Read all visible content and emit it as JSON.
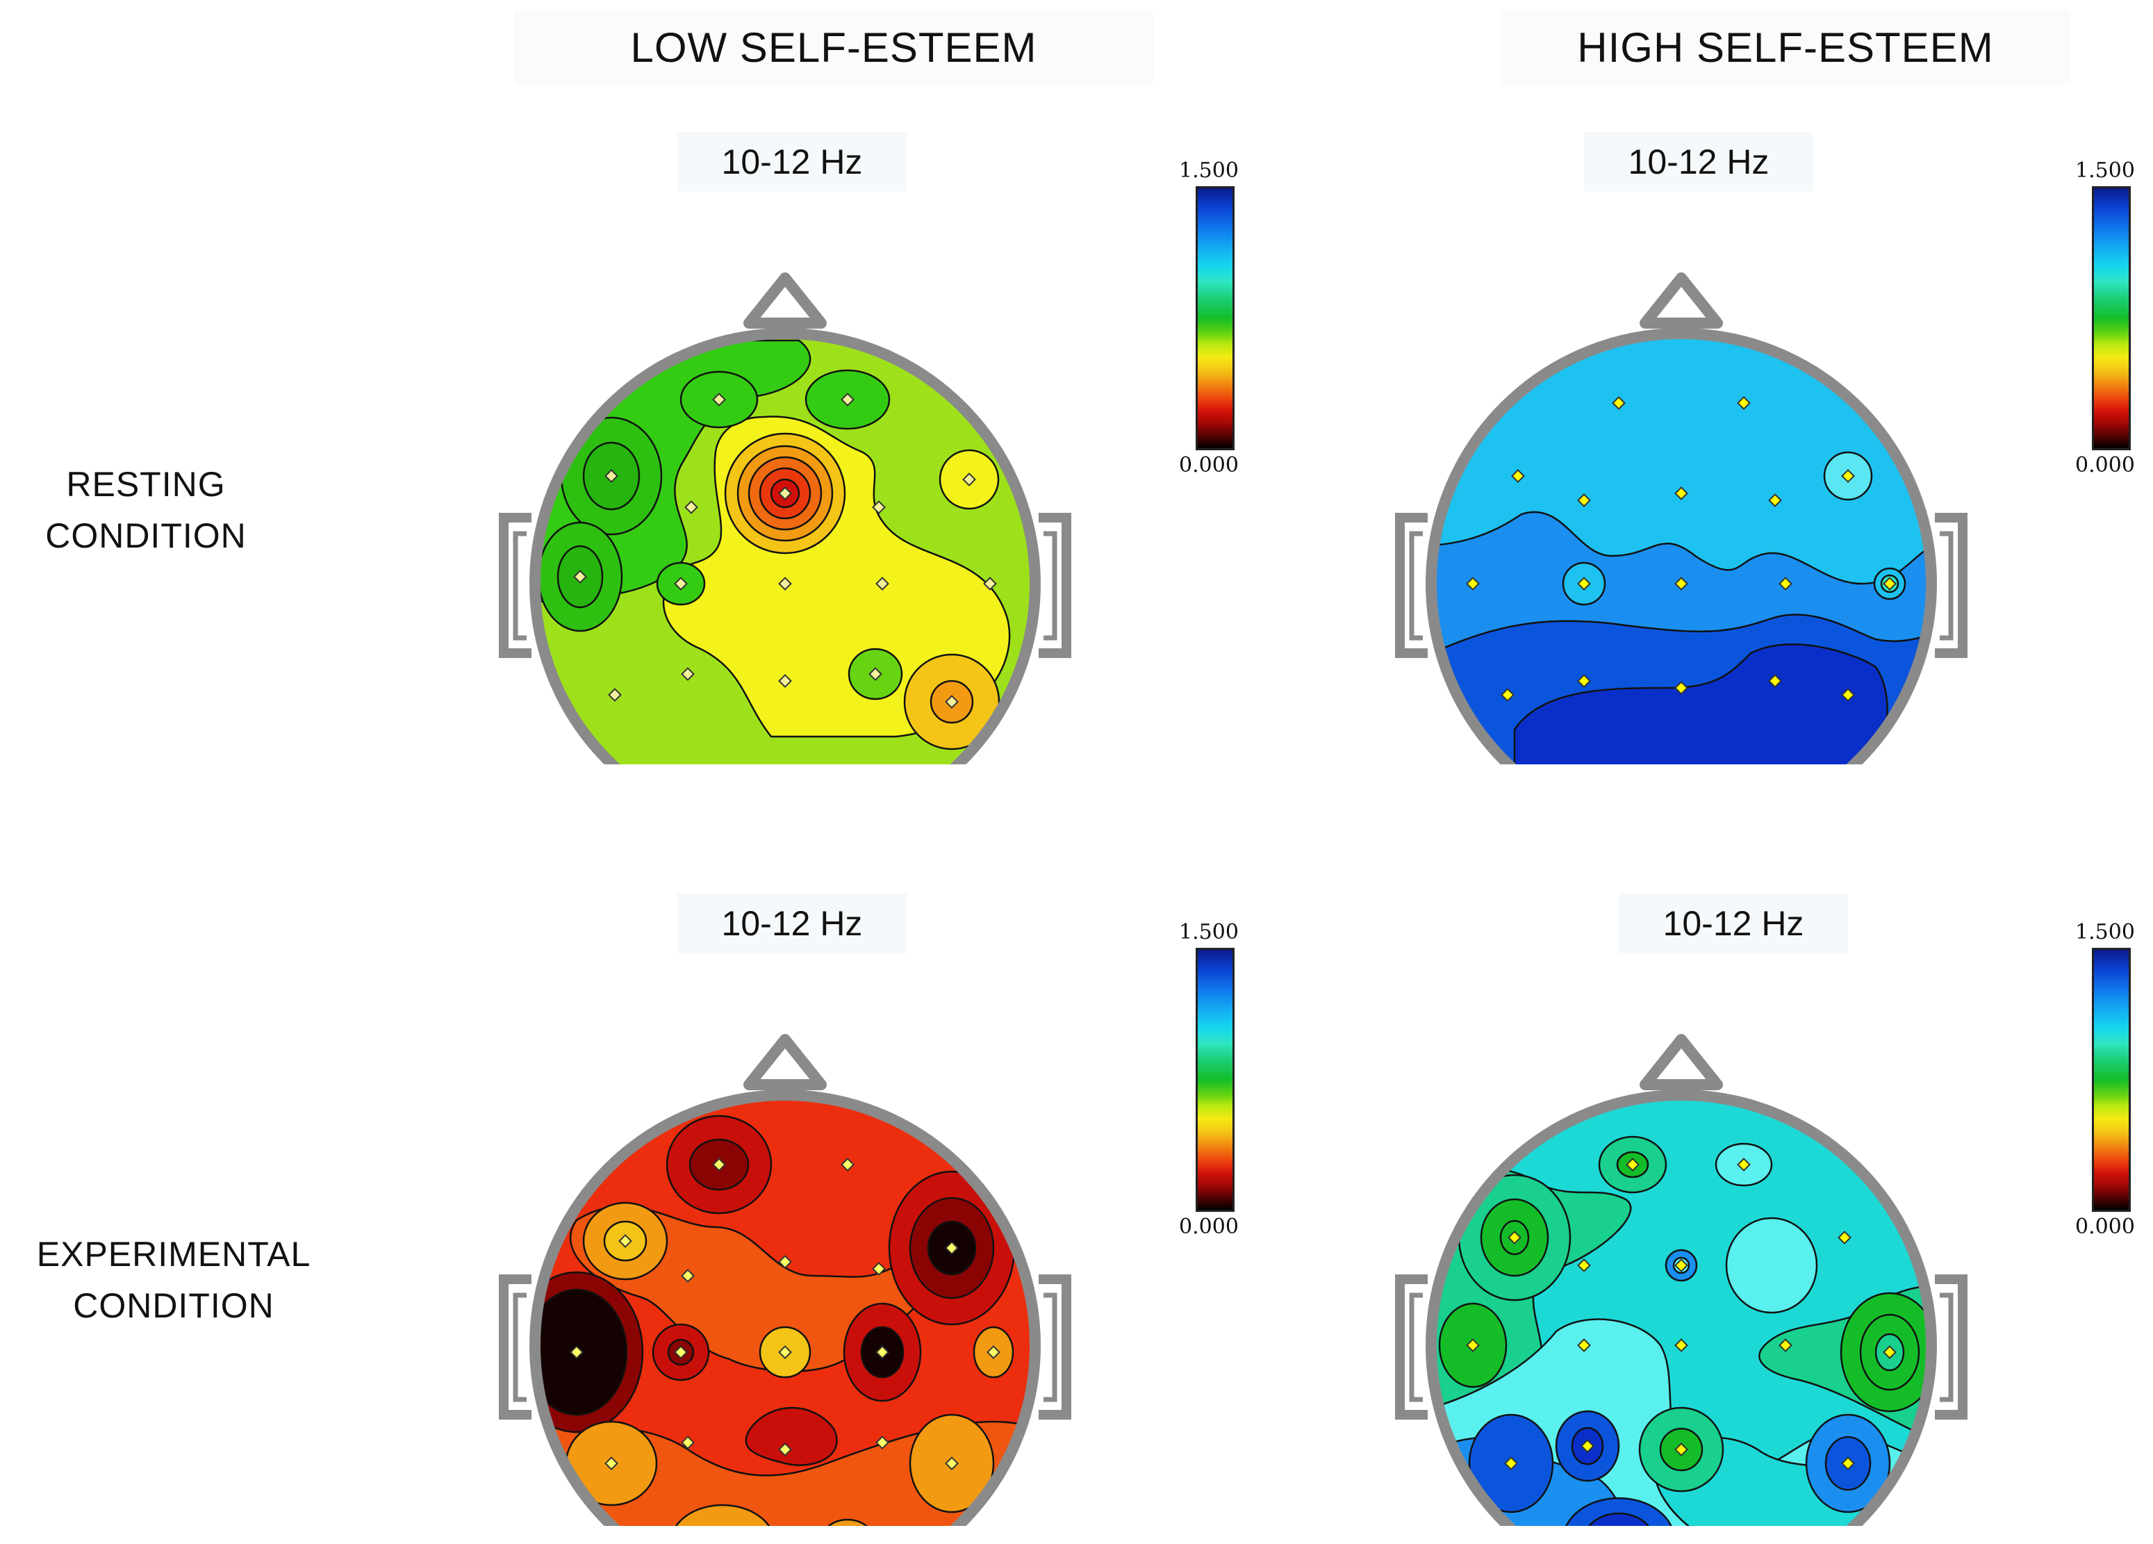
{
  "headers": {
    "low": "LOW SELF-ESTEEM",
    "high": "HIGH SELF-ESTEEM"
  },
  "rows": {
    "resting": [
      "RESTING",
      "CONDITION"
    ],
    "experimental": [
      "EXPERIMENTAL",
      "CONDITION"
    ]
  },
  "maps": {
    "low_resting": {
      "freq": "10-12 Hz",
      "background": "#9ee11a"
    },
    "high_resting": {
      "freq": "10-12 Hz",
      "background": "#1ec2f0"
    },
    "low_experimental": {
      "freq": "10-12 Hz",
      "background": "#ec2e0e"
    },
    "high_experimental": {
      "freq": "10-12  Hz",
      "background": "#1dd9d6"
    }
  },
  "scale": {
    "max": "1.500",
    "min": "0.000"
  },
  "colors": {
    "head_outline": "#8a8a8a",
    "contour_line": "#111111",
    "electrode_low": "#f4f29a",
    "electrode_high": "#ffff00"
  }
}
